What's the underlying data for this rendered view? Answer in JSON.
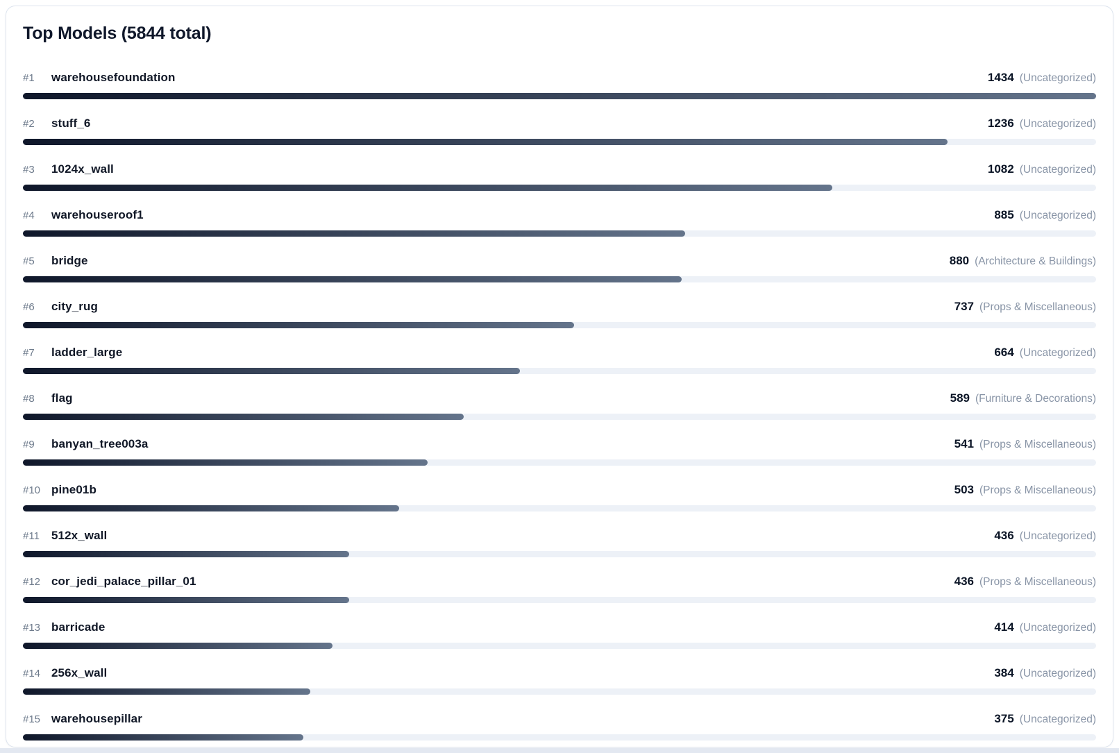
{
  "chart_data": {
    "type": "bar",
    "orientation": "horizontal",
    "title": "Top Models (5844 total)",
    "total": 5844,
    "max_value": 1434,
    "legend": "none",
    "items": [
      {
        "rank": "#1",
        "name": "warehousefoundation",
        "value": 1434,
        "category": "(Uncategorized)"
      },
      {
        "rank": "#2",
        "name": "stuff_6",
        "value": 1236,
        "category": "(Uncategorized)"
      },
      {
        "rank": "#3",
        "name": "1024x_wall",
        "value": 1082,
        "category": "(Uncategorized)"
      },
      {
        "rank": "#4",
        "name": "warehouseroof1",
        "value": 885,
        "category": "(Uncategorized)"
      },
      {
        "rank": "#5",
        "name": "bridge",
        "value": 880,
        "category": "(Architecture & Buildings)"
      },
      {
        "rank": "#6",
        "name": "city_rug",
        "value": 737,
        "category": "(Props & Miscellaneous)"
      },
      {
        "rank": "#7",
        "name": "ladder_large",
        "value": 664,
        "category": "(Uncategorized)"
      },
      {
        "rank": "#8",
        "name": "flag",
        "value": 589,
        "category": "(Furniture & Decorations)"
      },
      {
        "rank": "#9",
        "name": "banyan_tree003a",
        "value": 541,
        "category": "(Props & Miscellaneous)"
      },
      {
        "rank": "#10",
        "name": "pine01b",
        "value": 503,
        "category": "(Props & Miscellaneous)"
      },
      {
        "rank": "#11",
        "name": "512x_wall",
        "value": 436,
        "category": "(Uncategorized)"
      },
      {
        "rank": "#12",
        "name": "cor_jedi_palace_pillar_01",
        "value": 436,
        "category": "(Props & Miscellaneous)"
      },
      {
        "rank": "#13",
        "name": "barricade",
        "value": 414,
        "category": "(Uncategorized)"
      },
      {
        "rank": "#14",
        "name": "256x_wall",
        "value": 384,
        "category": "(Uncategorized)"
      },
      {
        "rank": "#15",
        "name": "warehousepillar",
        "value": 375,
        "category": "(Uncategorized)"
      }
    ]
  },
  "colors": {
    "bar_gradient_start": "#0f172a",
    "bar_gradient_end": "#64748b",
    "bar_track": "#edf1f7",
    "title_text": "#0f172a",
    "rank_text": "#6e7b8c",
    "name_text": "#111827",
    "count_text": "#0b1526",
    "category_text": "#8894a6",
    "card_border": "#dde4ee",
    "card_background": "#ffffff",
    "bottom_strip": "#e3e8f1"
  }
}
